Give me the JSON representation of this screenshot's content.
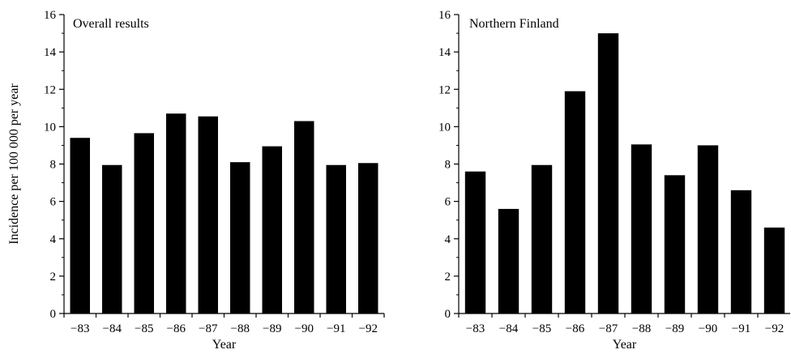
{
  "chart_data": [
    {
      "type": "bar",
      "title": "Overall results",
      "xlabel": "Year",
      "ylabel": "Incidence per 100 000 per year",
      "categories": [
        "−83",
        "−84",
        "−85",
        "−86",
        "−87",
        "−88",
        "−89",
        "−90",
        "−91",
        "−92"
      ],
      "values": [
        9.4,
        7.95,
        9.65,
        10.7,
        10.55,
        8.1,
        8.95,
        10.3,
        7.95,
        8.05
      ],
      "ylim": [
        0,
        16
      ],
      "yticks": [
        "0",
        "2",
        "4",
        "6",
        "8",
        "10",
        "12",
        "14",
        "16"
      ],
      "bar_color": "#000000",
      "grid": false
    },
    {
      "type": "bar",
      "title": "Northern Finland",
      "xlabel": "Year",
      "ylabel": "",
      "categories": [
        "−83",
        "−84",
        "−85",
        "−86",
        "−87",
        "−88",
        "−89",
        "−90",
        "−91",
        "−92"
      ],
      "values": [
        7.6,
        5.6,
        7.95,
        11.9,
        15.0,
        9.05,
        7.4,
        9.0,
        6.6,
        4.6
      ],
      "ylim": [
        0,
        16
      ],
      "yticks": [
        "0",
        "2",
        "4",
        "6",
        "8",
        "10",
        "12",
        "14",
        "16"
      ],
      "bar_color": "#000000",
      "grid": false
    }
  ]
}
